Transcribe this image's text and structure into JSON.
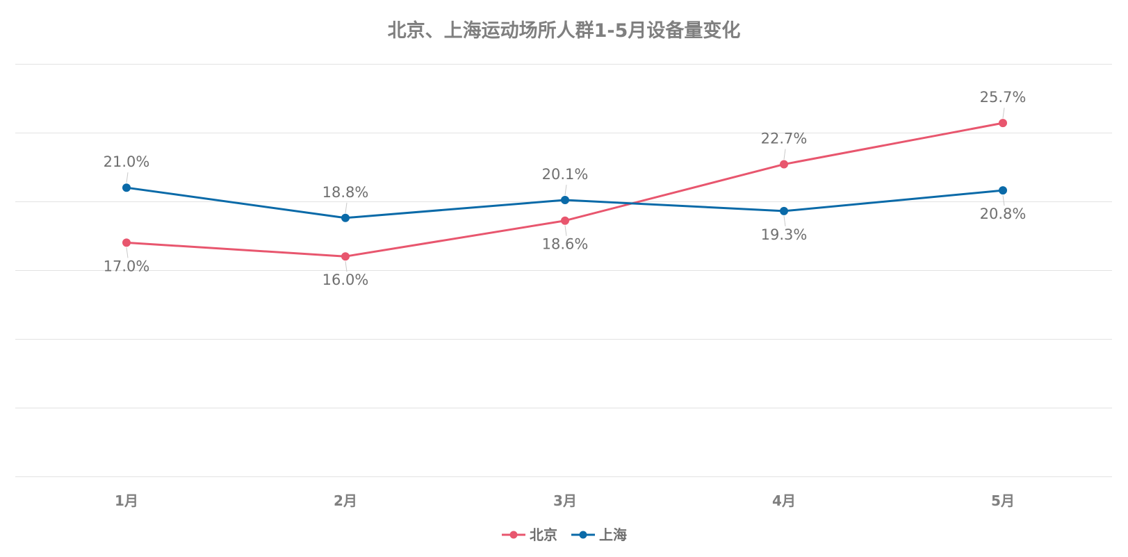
{
  "chart_data": {
    "type": "line",
    "title": "北京、上海运动场所人群1-5月设备量变化",
    "categories": [
      "1月",
      "2月",
      "3月",
      "4月",
      "5月"
    ],
    "series": [
      {
        "name": "北京",
        "color": "#e8566e",
        "values": [
          17.0,
          16.0,
          18.6,
          22.7,
          25.7
        ],
        "labels": [
          "17.0%",
          "16.0%",
          "18.6%",
          "22.7%",
          "25.7%"
        ]
      },
      {
        "name": "上海",
        "color": "#0a6aa8",
        "values": [
          21.0,
          18.8,
          20.1,
          19.3,
          20.8
        ],
        "labels": [
          "21.0%",
          "18.8%",
          "20.1%",
          "19.3%",
          "20.8%"
        ]
      }
    ],
    "ylim": [
      0,
      30
    ],
    "grid": true,
    "legend_position": "bottom-center",
    "y_tick_labels_shown": false
  }
}
